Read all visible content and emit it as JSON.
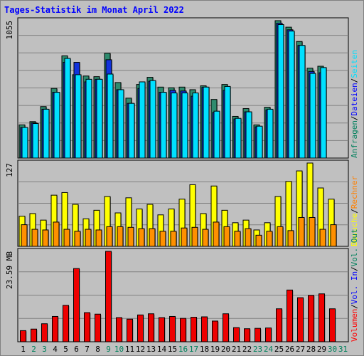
{
  "chart_data": {
    "type": "bar",
    "title": "Tages-Statistik im Monat April 2022",
    "categories": [
      "1",
      "2",
      "3",
      "4",
      "5",
      "6",
      "7",
      "8",
      "9",
      "10",
      "11",
      "12",
      "13",
      "14",
      "15",
      "16",
      "17",
      "18",
      "19",
      "20",
      "21",
      "22",
      "23",
      "24",
      "25",
      "26",
      "27",
      "28",
      "29",
      "30",
      "31"
    ],
    "weekend_days": [
      "2",
      "3",
      "9",
      "10",
      "16",
      "17",
      "23",
      "24",
      "30",
      "31"
    ],
    "panels": [
      {
        "id": "requests",
        "ymax_label": "1055",
        "ymax": 1055,
        "legend": [
          {
            "text": "Anfragen",
            "color": "#00805c"
          },
          {
            "text": "Dateien",
            "color": "#0000ff"
          },
          {
            "text": "Seiten",
            "color": "#00e0ff"
          }
        ],
        "separator_color": "#000000",
        "series": [
          {
            "name": "Anfragen",
            "color": "#2e8b6e",
            "values": [
              255,
              280,
              395,
              535,
              785,
              640,
              630,
              625,
              805,
              580,
              460,
              565,
              620,
              545,
              540,
              545,
              525,
              555,
              450,
              565,
              320,
              380,
              255,
              390,
              1060,
              1005,
              895,
              690,
              705,
              0,
              0
            ]
          },
          {
            "name": "Dateien",
            "color": "#1133dd",
            "values": [
              235,
              270,
              375,
              505,
              735,
              735,
              585,
              605,
              755,
              525,
              420,
              535,
              590,
              505,
              520,
              515,
              475,
              545,
              350,
              520,
              300,
              355,
              240,
              370,
              1035,
              985,
              865,
              665,
              655,
              0,
              0
            ]
          },
          {
            "name": "Seiten",
            "color": "#00e0ff",
            "values": [
              235,
              265,
              375,
              505,
              765,
              640,
              605,
              605,
              645,
              525,
              420,
              585,
              595,
              505,
              500,
              500,
              500,
              545,
              360,
              550,
              305,
              355,
              245,
              375,
              1025,
              975,
              865,
              650,
              695,
              0,
              0
            ]
          }
        ]
      },
      {
        "id": "visits",
        "ymax_label": "127",
        "ymax": 127,
        "legend": [
          {
            "text": "Besuche",
            "color": "#ffff00"
          },
          {
            "text": "Rechner",
            "color": "#ff8000"
          }
        ],
        "separator_color": "#000000",
        "series": [
          {
            "name": "Besuche",
            "color": "#ffff00",
            "values": [
              46,
              50,
              40,
              78,
              82,
              64,
              42,
              55,
              76,
              51,
              74,
              57,
              64,
              48,
              57,
              72,
              94,
              50,
              92,
              55,
              36,
              40,
              25,
              36,
              76,
              99,
              115,
              127,
              89,
              72,
              0
            ],
            "label": "Besuche"
          },
          {
            "name": "Rechner",
            "color": "#ff9000",
            "values": [
              33,
              26,
              25,
              37,
              26,
              23,
              26,
              25,
              30,
              30,
              29,
              27,
              27,
              23,
              23,
              28,
              29,
              26,
              37,
              30,
              23,
              27,
              17,
              23,
              30,
              24,
              44,
              44,
              26,
              33,
              0
            ]
          }
        ]
      },
      {
        "id": "volume",
        "ymax_label": "23.59 MB",
        "ymax": 23.59,
        "legend": [
          {
            "text": "Volumen",
            "color": "#ff0000"
          },
          {
            "text": "Vol. In",
            "color": "#0000ff"
          },
          {
            "text": "Vol. Out",
            "color": "#00805c"
          }
        ],
        "separator_color": "#000000",
        "series": [
          {
            "name": "Volumen",
            "color": "#ee0000",
            "values": [
              2.9,
              3.3,
              4.7,
              6.6,
              9.5,
              19.1,
              7.6,
              7.2,
              24.0,
              6.3,
              5.9,
              7.0,
              7.3,
              6.3,
              6.6,
              6.1,
              6.4,
              6.5,
              5.4,
              7.3,
              3.7,
              3.4,
              3.5,
              3.6,
              8.6,
              13.5,
              11.5,
              12.1,
              12.5,
              8.6,
              0
            ]
          }
        ]
      }
    ]
  }
}
